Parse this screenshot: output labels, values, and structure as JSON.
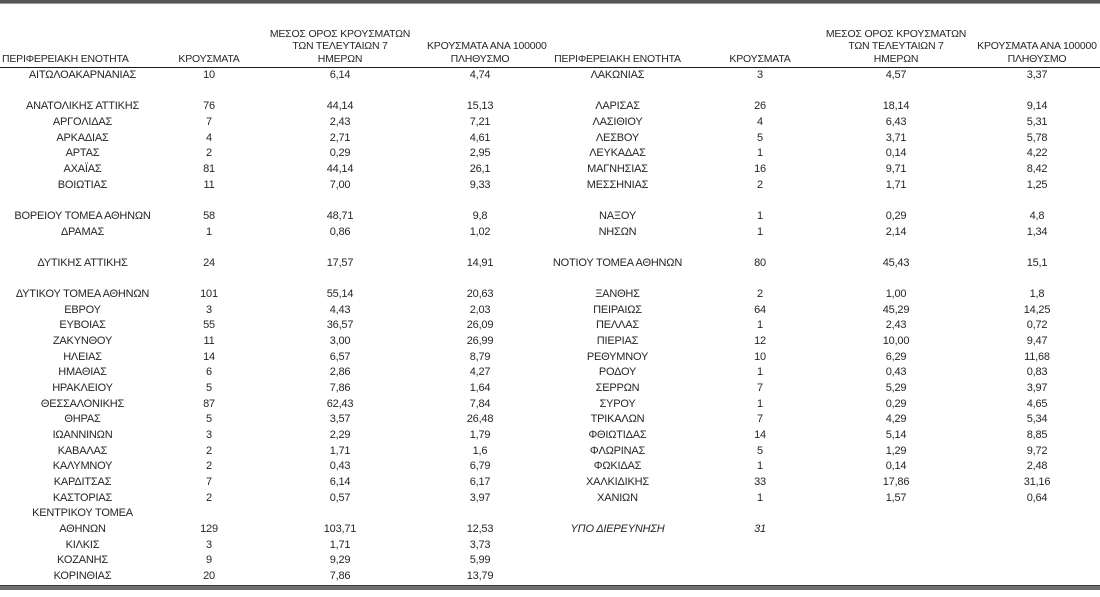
{
  "page": {
    "background": "#ffffff",
    "text_color": "#262626",
    "top_rule_color": "#565656",
    "bottom_rule_color": "#6e6e6e",
    "header_line_color": "#1a1a1a"
  },
  "table": {
    "headers": {
      "region": "ΠΕΡΙΦΕΡΕΙΑΚΗ ΕΝΟΤΗΤΑ",
      "cases": "ΚΡΟΥΣΜΑΤΑ",
      "avg7": "ΜΕΣΟΣ ΟΡΟΣ ΚΡΟΥΣΜΑΤΩΝ\nΤΩΝ ΤΕΛΕΥΤΑΙΩΝ 7\nΗΜΕΡΩΝ",
      "per100k": "ΚΡΟΥΣΜΑΤΑ ΑΝΑ 100000\nΠΛΗΘΥΣΜΟ"
    },
    "rows": [
      [
        "ΑΙΤΩΛΟΑΚΑΡΝΑΝΙΑΣ",
        "10",
        "6,14",
        "4,74",
        "ΛΑΚΩΝΙΑΣ",
        "3",
        "4,57",
        "3,37"
      ],
      [
        "",
        "",
        "",
        "",
        "",
        "",
        "",
        ""
      ],
      [
        "ΑΝΑΤΟΛΙΚΗΣ ΑΤΤΙΚΗΣ",
        "76",
        "44,14",
        "15,13",
        "ΛΑΡΙΣΑΣ",
        "26",
        "18,14",
        "9,14"
      ],
      [
        "ΑΡΓΟΛΙΔΑΣ",
        "7",
        "2,43",
        "7,21",
        "ΛΑΣΙΘΙΟΥ",
        "4",
        "6,43",
        "5,31"
      ],
      [
        "ΑΡΚΑΔΙΑΣ",
        "4",
        "2,71",
        "4,61",
        "ΛΕΣΒΟΥ",
        "5",
        "3,71",
        "5,78"
      ],
      [
        "ΑΡΤΑΣ",
        "2",
        "0,29",
        "2,95",
        "ΛΕΥΚΑΔΑΣ",
        "1",
        "0,14",
        "4,22"
      ],
      [
        "ΑΧΑΪΑΣ",
        "81",
        "44,14",
        "26,1",
        "ΜΑΓΝΗΣΙΑΣ",
        "16",
        "9,71",
        "8,42"
      ],
      [
        "ΒΟΙΩΤΙΑΣ",
        "11",
        "7,00",
        "9,33",
        "ΜΕΣΣΗΝΙΑΣ",
        "2",
        "1,71",
        "1,25"
      ],
      [
        "",
        "",
        "",
        "",
        "",
        "",
        "",
        ""
      ],
      [
        "ΒΟΡΕΙΟΥ ΤΟΜΕΑ ΑΘΗΝΩΝ",
        "58",
        "48,71",
        "9,8",
        "ΝΑΞΟΥ",
        "1",
        "0,29",
        "4,8"
      ],
      [
        "ΔΡΑΜΑΣ",
        "1",
        "0,86",
        "1,02",
        "ΝΗΣΩΝ",
        "1",
        "2,14",
        "1,34"
      ],
      [
        "",
        "",
        "",
        "",
        "",
        "",
        "",
        ""
      ],
      [
        "ΔΥΤΙΚΗΣ ΑΤΤΙΚΗΣ",
        "24",
        "17,57",
        "14,91",
        "ΝΟΤΙΟΥ ΤΟΜΕΑ ΑΘΗΝΩΝ",
        "80",
        "45,43",
        "15,1"
      ],
      [
        "",
        "",
        "",
        "",
        "",
        "",
        "",
        ""
      ],
      [
        "ΔΥΤΙΚΟΥ ΤΟΜΕΑ ΑΘΗΝΩΝ",
        "101",
        "55,14",
        "20,63",
        "ΞΑΝΘΗΣ",
        "2",
        "1,00",
        "1,8"
      ],
      [
        "ΕΒΡΟΥ",
        "3",
        "4,43",
        "2,03",
        "ΠΕΙΡΑΙΩΣ",
        "64",
        "45,29",
        "14,25"
      ],
      [
        "ΕΥΒΟΙΑΣ",
        "55",
        "36,57",
        "26,09",
        "ΠΕΛΛΑΣ",
        "1",
        "2,43",
        "0,72"
      ],
      [
        "ΖΑΚΥΝΘΟΥ",
        "11",
        "3,00",
        "26,99",
        "ΠΙΕΡΙΑΣ",
        "12",
        "10,00",
        "9,47"
      ],
      [
        "ΗΛΕΙΑΣ",
        "14",
        "6,57",
        "8,79",
        "ΡΕΘΥΜΝΟΥ",
        "10",
        "6,29",
        "11,68"
      ],
      [
        "ΗΜΑΘΙΑΣ",
        "6",
        "2,86",
        "4,27",
        "ΡΟΔΟΥ",
        "1",
        "0,43",
        "0,83"
      ],
      [
        "ΗΡΑΚΛΕΙΟΥ",
        "5",
        "7,86",
        "1,64",
        "ΣΕΡΡΩΝ",
        "7",
        "5,29",
        "3,97"
      ],
      [
        "ΘΕΣΣΑΛΟΝΙΚΗΣ",
        "87",
        "62,43",
        "7,84",
        "ΣΥΡΟΥ",
        "1",
        "0,29",
        "4,65"
      ],
      [
        "ΘΗΡΑΣ",
        "5",
        "3,57",
        "26,48",
        "ΤΡΙΚΑΛΩΝ",
        "7",
        "4,29",
        "5,34"
      ],
      [
        "ΙΩΑΝΝΙΝΩΝ",
        "3",
        "2,29",
        "1,79",
        "ΦΘΙΩΤΙΔΑΣ",
        "14",
        "5,14",
        "8,85"
      ],
      [
        "ΚΑΒΑΛΑΣ",
        "2",
        "1,71",
        "1,6",
        "ΦΛΩΡΙΝΑΣ",
        "5",
        "1,29",
        "9,72"
      ],
      [
        "ΚΑΛΥΜΝΟΥ",
        "2",
        "0,43",
        "6,79",
        "ΦΩΚΙΔΑΣ",
        "1",
        "0,14",
        "2,48"
      ],
      [
        "ΚΑΡΔΙΤΣΑΣ",
        "7",
        "6,14",
        "6,17",
        "ΧΑΛΚΙΔΙΚΗΣ",
        "33",
        "17,86",
        "31,16"
      ],
      [
        "ΚΑΣΤΟΡΙΑΣ",
        "2",
        "0,57",
        "3,97",
        "ΧΑΝΙΩΝ",
        "1",
        "1,57",
        "0,64"
      ],
      [
        "ΚΕΝΤΡΙΚΟΥ ΤΟΜΕΑ",
        "",
        "",
        "",
        "",
        "",
        "",
        ""
      ],
      [
        "ΑΘΗΝΩΝ",
        "129",
        "103,71",
        "12,53",
        "ΥΠΟ ΔΙΕΡΕΥΝΗΣΗ",
        "31",
        "",
        ""
      ],
      [
        "ΚΙΛΚΙΣ",
        "3",
        "1,71",
        "3,73",
        "",
        "",
        "",
        ""
      ],
      [
        "ΚΟΖΑΝΗΣ",
        "9",
        "9,29",
        "5,99",
        "",
        "",
        "",
        ""
      ],
      [
        "ΚΟΡΙΝΘΙΑΣ",
        "20",
        "7,86",
        "13,79",
        "",
        "",
        "",
        ""
      ]
    ],
    "italic_cells": {
      "29": [
        4,
        5
      ]
    }
  }
}
